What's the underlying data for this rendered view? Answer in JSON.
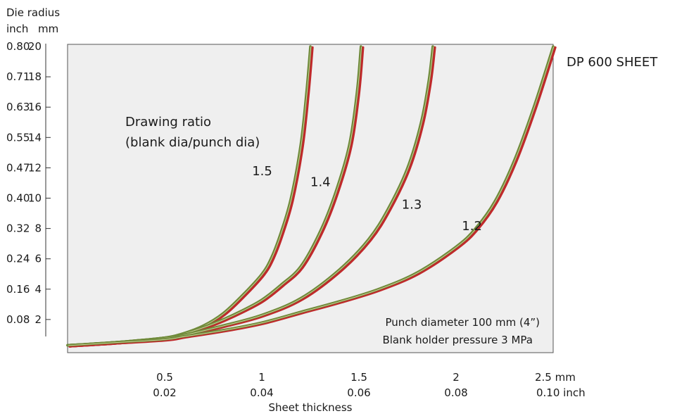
{
  "chart_data": {
    "type": "line",
    "title": "DP 600 SHEET",
    "xlabel": "Sheet thickness",
    "ylabel": "Die radius",
    "y_units": {
      "inch": "inch",
      "mm": "mm"
    },
    "x_units": {
      "mm": "mm",
      "inch": "inch"
    },
    "xlim": [
      0,
      2.5
    ],
    "ylim": [
      0,
      20
    ],
    "grid": false,
    "x_ticks": [
      {
        "mm": "0.5",
        "inch": "0.02",
        "v": 0.5
      },
      {
        "mm": "1",
        "inch": "0.04",
        "v": 1.0
      },
      {
        "mm": "1.5",
        "inch": "0.06",
        "v": 1.5
      },
      {
        "mm": "2",
        "inch": "0.08",
        "v": 2.0
      },
      {
        "mm": "2.5 mm",
        "inch": "0.10 inch",
        "v": 2.5
      }
    ],
    "y_ticks": [
      {
        "mm": "2",
        "inch": "0.08",
        "v": 2
      },
      {
        "mm": "4",
        "inch": "0.16",
        "v": 4
      },
      {
        "mm": "6",
        "inch": "0.24",
        "v": 6
      },
      {
        "mm": "8",
        "inch": "0.32",
        "v": 8
      },
      {
        "mm": "10",
        "inch": "0.40",
        "v": 10
      },
      {
        "mm": "12",
        "inch": "0.47",
        "v": 12
      },
      {
        "mm": "14",
        "inch": "0.55",
        "v": 14
      },
      {
        "mm": "16",
        "inch": "0.63",
        "v": 16
      },
      {
        "mm": "18",
        "inch": "0.71",
        "v": 18
      },
      {
        "mm": "20",
        "inch": "0.80",
        "v": 20
      }
    ],
    "legend_title": [
      "Drawing ratio",
      "(blank dia/punch dia)"
    ],
    "annotations": [
      "Punch diameter 100 mm (4”)",
      "Blank holder pressure 3 MPa"
    ],
    "series": [
      {
        "name": "1.5",
        "x": [
          0.0,
          0.25,
          0.5,
          0.6,
          0.7,
          0.8,
          0.9,
          1.0,
          1.05,
          1.1,
          1.15,
          1.2,
          1.23,
          1.25
        ],
        "y": [
          0.3,
          0.5,
          0.8,
          1.1,
          1.6,
          2.4,
          3.6,
          5.0,
          6.1,
          7.8,
          10.0,
          13.5,
          17.0,
          20.0
        ]
      },
      {
        "name": "1.4",
        "x": [
          0.0,
          0.25,
          0.5,
          0.6,
          0.7,
          0.8,
          0.9,
          1.0,
          1.1,
          1.2,
          1.3,
          1.38,
          1.45,
          1.49,
          1.51
        ],
        "y": [
          0.3,
          0.5,
          0.8,
          1.1,
          1.5,
          2.0,
          2.6,
          3.3,
          4.3,
          5.5,
          7.8,
          10.4,
          13.5,
          17.0,
          20.0
        ]
      },
      {
        "name": "1.3",
        "x": [
          0.0,
          0.25,
          0.5,
          0.6,
          0.8,
          1.0,
          1.2,
          1.4,
          1.55,
          1.65,
          1.75,
          1.82,
          1.86,
          1.88
        ],
        "y": [
          0.3,
          0.5,
          0.8,
          1.0,
          1.6,
          2.3,
          3.4,
          5.3,
          7.3,
          9.3,
          12.0,
          15.0,
          17.8,
          20.0
        ]
      },
      {
        "name": "1.2",
        "x": [
          0.0,
          0.25,
          0.5,
          0.6,
          0.8,
          1.0,
          1.2,
          1.4,
          1.6,
          1.8,
          2.0,
          2.1,
          2.2,
          2.3,
          2.4,
          2.5
        ],
        "y": [
          0.3,
          0.5,
          0.7,
          0.9,
          1.3,
          1.8,
          2.5,
          3.2,
          4.0,
          5.1,
          6.8,
          8.0,
          9.8,
          12.5,
          16.0,
          20.0
        ]
      }
    ],
    "label_anchor": [
      {
        "x": 0.95,
        "y": 11.5
      },
      {
        "x": 1.25,
        "y": 10.8
      },
      {
        "x": 1.72,
        "y": 9.3
      },
      {
        "x": 2.03,
        "y": 7.9
      }
    ],
    "colors": {
      "plot_bg": "#efefef",
      "outer_line": "#c0292b",
      "inner_line": "#6f8a3a",
      "highlight": "#e8e6b8"
    }
  }
}
